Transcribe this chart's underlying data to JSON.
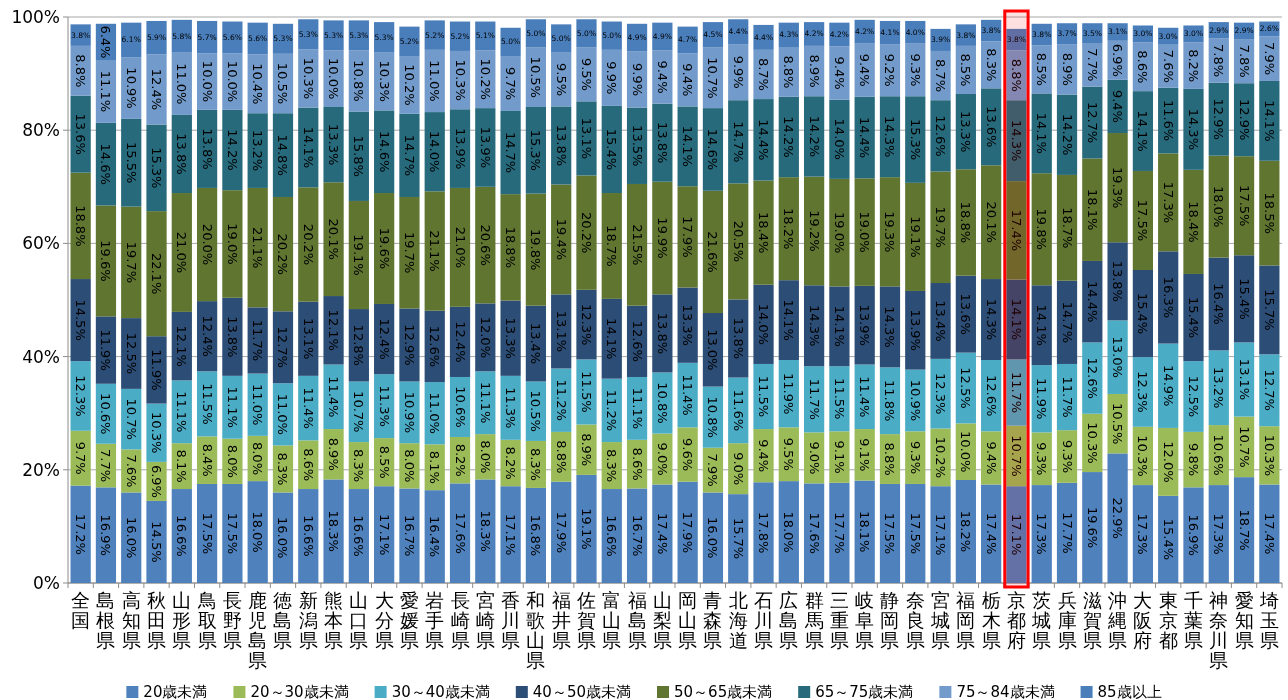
{
  "chart_data": {
    "type": "bar",
    "stacked": true,
    "data_labels": false,
    "grid": "y",
    "legend": "bottom",
    "categories": [
      "全国",
      "島根県",
      "高知県",
      "秋田県",
      "山形県",
      "鳥取県",
      "長野県",
      "鹿児島県",
      "徳島県",
      "新潟県",
      "熊本県",
      "山口県",
      "大分県",
      "愛媛県",
      "岩手県",
      "長崎県",
      "宮崎県",
      "香川県",
      "和歌山県",
      "福井県",
      "佐賀県",
      "富山県",
      "福島県",
      "山梨県",
      "岡山県",
      "青森県",
      "北海道",
      "石川県",
      "広島県",
      "群馬県",
      "三重県",
      "岐阜県",
      "静岡県",
      "奈良県",
      "宮城県",
      "福岡県",
      "栃木県",
      "京都府",
      "茨城県",
      "兵庫県",
      "滋賀県",
      "沖縄県",
      "大阪府",
      "東京都",
      "千葉県",
      "神奈川県",
      "愛知県",
      "埼玉県"
    ],
    "ylim": [
      0,
      100
    ],
    "yticks": [
      {
        "value": 0,
        "label": "0%"
      },
      {
        "value": 20,
        "label": "20%"
      },
      {
        "value": 40,
        "label": "40%"
      },
      {
        "value": 60,
        "label": "60%"
      },
      {
        "value": 80,
        "label": "80%"
      },
      {
        "value": 100,
        "label": "100%"
      }
    ],
    "bands": [
      {
        "axis": "x",
        "from": "京都府",
        "to": "京都府",
        "color": "#ff0000"
      }
    ],
    "series": [
      {
        "name": "20歳未満",
        "color": "#4f81bd",
        "values": [
          17.2,
          16.9,
          16.0,
          14.5,
          16.6,
          17.5,
          17.5,
          18.0,
          16.0,
          16.6,
          18.3,
          16.6,
          17.1,
          16.7,
          16.4,
          17.6,
          18.3,
          17.1,
          16.8,
          17.9,
          19.1,
          16.6,
          16.7,
          17.4,
          17.9,
          16.0,
          15.7,
          17.8,
          18.0,
          17.6,
          17.7,
          18.1,
          17.5,
          17.5,
          17.1,
          18.2,
          17.4,
          17.1,
          17.3,
          17.7,
          19.6,
          22.9,
          17.3,
          15.4,
          16.9,
          17.3,
          18.7,
          17.4
        ],
        "value_labels": [
          "17.2%",
          "16.9%",
          "16.0%",
          "14.5%",
          "16.6%",
          "17.5%",
          "17.5%",
          "18.0%",
          "16.0%",
          "16.6%",
          "18.3%",
          "16.6%",
          "17.1%",
          "16.7%",
          "16.4%",
          "17.6%",
          "18.3%",
          "17.1%",
          "16.8%",
          "17.9%",
          "19.1%",
          "16.6%",
          "16.7%",
          "17.4%",
          "17.9%",
          "16.0%",
          "15.7%",
          "17.8%",
          "18.0%",
          "17.6%",
          "17.7%",
          "18.1%",
          "17.5%",
          "17.5%",
          "17.1%",
          "18.2%",
          "17.4%",
          "17.1%",
          "17.3%",
          "17.7%",
          "19.6%",
          "22.9%",
          "17.3%",
          "15.4%",
          "16.9%",
          "17.3%",
          "18.7%",
          "17.4%"
        ]
      },
      {
        "name": "20～30歳未満",
        "color": "#9bbb59",
        "values": [
          9.7,
          7.7,
          7.6,
          6.9,
          8.1,
          8.4,
          8.0,
          8.0,
          8.3,
          8.6,
          8.9,
          8.3,
          8.5,
          8.0,
          8.1,
          8.2,
          8.0,
          8.2,
          8.3,
          8.8,
          8.9,
          8.3,
          8.6,
          9.0,
          9.6,
          7.9,
          9.0,
          9.4,
          9.5,
          9.0,
          9.1,
          9.1,
          8.8,
          9.3,
          10.2,
          10.0,
          9.4,
          10.7,
          9.3,
          9.3,
          10.3,
          10.5,
          10.3,
          12.0,
          9.8,
          10.6,
          10.7,
          10.3
        ],
        "value_labels": [
          "9.7%",
          "7.7%",
          "7.6%",
          "6.9%",
          "8.1%",
          "8.4%",
          "8.0%",
          "8.0%",
          "8.3%",
          "8.6%",
          "8.9%",
          "8.3%",
          "8.5%",
          "8.0%",
          "8.1%",
          "8.2%",
          "8.0%",
          "8.2%",
          "8.3%",
          "8.8%",
          "8.9%",
          "8.3%",
          "8.6%",
          "9.0%",
          "9.6%",
          "7.9%",
          "9.0%",
          "9.4%",
          "9.5%",
          "9.0%",
          "9.1%",
          "9.1%",
          "8.8%",
          "9.3%",
          "10.2%",
          "10.0%",
          "9.4%",
          "10.7%",
          "9.3%",
          "9.3%",
          "10.3%",
          "10.5%",
          "10.3%",
          "12.0%",
          "9.8%",
          "10.6%",
          "10.7%",
          "10.3%"
        ]
      },
      {
        "name": "30～40歳未満",
        "color": "#4bacc6",
        "values": [
          12.3,
          10.6,
          10.7,
          10.3,
          11.1,
          11.5,
          11.1,
          11.0,
          11.0,
          11.4,
          11.4,
          10.7,
          11.3,
          10.9,
          11.0,
          10.6,
          11.1,
          11.3,
          10.5,
          11.2,
          11.5,
          11.2,
          11.1,
          10.8,
          11.4,
          10.8,
          11.6,
          11.5,
          11.9,
          11.7,
          11.5,
          11.4,
          11.8,
          10.9,
          12.3,
          12.5,
          12.6,
          11.7,
          11.9,
          11.7,
          12.6,
          13.0,
          12.3,
          14.9,
          12.5,
          13.2,
          13.1,
          12.7
        ],
        "value_labels": [
          "12.3%",
          "10.6%",
          "10.7%",
          "10.3%",
          "11.1%",
          "11.5%",
          "11.1%",
          "11.0%",
          "11.0%",
          "11.4%",
          "11.4%",
          "10.7%",
          "11.3%",
          "10.9%",
          "11.0%",
          "10.6%",
          "11.1%",
          "11.3%",
          "10.5%",
          "11.2%",
          "11.5%",
          "11.2%",
          "11.1%",
          "10.8%",
          "11.4%",
          "10.8%",
          "11.6%",
          "11.5%",
          "11.9%",
          "11.7%",
          "11.5%",
          "11.4%",
          "11.8%",
          "10.9%",
          "12.3%",
          "12.5%",
          "12.6%",
          "11.7%",
          "11.9%",
          "11.7%",
          "12.6%",
          "13.0%",
          "12.3%",
          "14.9%",
          "12.5%",
          "13.2%",
          "13.1%",
          "12.7%"
        ]
      },
      {
        "name": "40～50歳未満",
        "color": "#2c4d75",
        "values": [
          14.5,
          11.9,
          12.5,
          11.9,
          12.1,
          12.4,
          13.8,
          11.7,
          12.7,
          13.1,
          12.1,
          12.8,
          12.4,
          12.9,
          12.6,
          12.4,
          12.0,
          13.3,
          13.4,
          13.1,
          12.3,
          14.1,
          12.6,
          13.8,
          13.3,
          13.0,
          13.8,
          14.0,
          14.1,
          14.3,
          14.1,
          13.9,
          14.3,
          13.9,
          13.4,
          13.6,
          14.3,
          14.1,
          14.1,
          14.7,
          14.4,
          13.8,
          15.4,
          16.3,
          15.4,
          16.4,
          15.4,
          15.7
        ],
        "value_labels": [
          "14.5%",
          "11.9%",
          "12.5%",
          "11.9%",
          "12.1%",
          "12.4%",
          "13.8%",
          "11.7%",
          "12.7%",
          "13.1%",
          "12.1%",
          "12.8%",
          "12.4%",
          "12.9%",
          "12.6%",
          "12.4%",
          "12.0%",
          "13.3%",
          "13.4%",
          "13.1%",
          "12.3%",
          "14.1%",
          "12.6%",
          "13.8%",
          "13.3%",
          "13.0%",
          "13.8%",
          "14.0%",
          "14.1%",
          "14.3%",
          "14.1%",
          "13.9%",
          "14.3%",
          "13.9%",
          "13.4%",
          "13.6%",
          "14.3%",
          "14.1%",
          "14.1%",
          "14.7%",
          "14.4%",
          "13.8%",
          "15.4%",
          "16.3%",
          "15.4%",
          "16.4%",
          "15.4%",
          "15.7%"
        ]
      },
      {
        "name": "50～65歳未満",
        "color": "#5f7530",
        "values": [
          18.8,
          19.6,
          19.7,
          22.1,
          21.0,
          20.0,
          19.0,
          21.1,
          20.2,
          20.2,
          20.1,
          19.1,
          19.6,
          19.7,
          21.1,
          21.0,
          20.6,
          18.8,
          19.8,
          19.4,
          20.2,
          18.7,
          21.5,
          19.9,
          17.9,
          21.6,
          20.5,
          18.4,
          18.2,
          19.2,
          19.0,
          19.0,
          19.3,
          19.1,
          19.7,
          18.8,
          20.1,
          17.4,
          19.8,
          18.7,
          18.1,
          19.3,
          17.5,
          17.3,
          18.4,
          18.0,
          17.5,
          18.5
        ],
        "value_labels": [
          "18.8%",
          "19.6%",
          "19.7%",
          "22.1%",
          "21.0%",
          "20.0%",
          "19.0%",
          "21.1%",
          "20.2%",
          "20.2%",
          "20.1%",
          "19.1%",
          "19.6%",
          "19.7%",
          "21.1%",
          "21.0%",
          "20.6%",
          "18.8%",
          "19.8%",
          "19.4%",
          "20.2%",
          "18.7%",
          "21.5%",
          "19.9%",
          "17.9%",
          "21.6%",
          "20.5%",
          "18.4%",
          "18.2%",
          "19.2%",
          "19.0%",
          "19.0%",
          "19.3%",
          "19.1%",
          "19.7%",
          "18.8%",
          "20.1%",
          "17.4%",
          "19.8%",
          "18.7%",
          "18.1%",
          "19.3%",
          "17.5%",
          "17.3%",
          "18.4%",
          "18.0%",
          "17.5%",
          "18.5%"
        ]
      },
      {
        "name": "65～75歳未満",
        "color": "#276a7c",
        "values": [
          13.6,
          14.6,
          15.5,
          15.3,
          13.8,
          13.8,
          14.2,
          13.2,
          14.8,
          14.1,
          13.3,
          15.8,
          14.6,
          14.7,
          14.0,
          13.9,
          13.9,
          14.7,
          15.3,
          13.8,
          13.1,
          15.4,
          13.5,
          13.8,
          14.1,
          14.6,
          14.7,
          14.4,
          14.2,
          14.2,
          14.0,
          14.4,
          14.3,
          15.3,
          12.6,
          13.3,
          13.6,
          14.3,
          14.1,
          14.2,
          12.7,
          9.4,
          14.1,
          11.6,
          14.3,
          12.9,
          12.9,
          14.1
        ],
        "value_labels": [
          "13.6%",
          "14.6%",
          "15.5%",
          "15.3%",
          "13.8%",
          "13.8%",
          "14.2%",
          "13.2%",
          "14.8%",
          "14.1%",
          "13.3%",
          "15.8%",
          "14.6%",
          "14.7%",
          "14.0%",
          "13.9%",
          "13.9%",
          "14.7%",
          "15.3%",
          "13.8%",
          "13.1%",
          "15.4%",
          "13.5%",
          "13.8%",
          "14.1%",
          "14.6%",
          "14.7%",
          "14.4%",
          "14.2%",
          "14.2%",
          "14.0%",
          "14.4%",
          "14.3%",
          "15.3%",
          "12.6%",
          "13.3%",
          "13.6%",
          "14.3%",
          "14.1%",
          "14.2%",
          "12.7%",
          "9.4%",
          "14.1%",
          "11.6%",
          "14.3%",
          "12.9%",
          "12.9%",
          "14.1%"
        ]
      },
      {
        "name": "75～84歳未満",
        "color": "#729aca",
        "values": [
          8.8,
          11.1,
          10.9,
          12.4,
          11.0,
          10.0,
          10.0,
          10.4,
          10.5,
          10.3,
          10.0,
          10.8,
          10.3,
          10.2,
          11.0,
          10.3,
          10.2,
          9.7,
          10.5,
          9.5,
          9.5,
          9.9,
          9.9,
          9.4,
          9.4,
          10.7,
          9.9,
          8.7,
          8.8,
          8.9,
          9.4,
          9.4,
          9.2,
          9.3,
          8.7,
          8.5,
          8.3,
          8.8,
          8.5,
          8.9,
          7.7,
          6.9,
          8.6,
          7.6,
          8.2,
          7.8,
          7.8,
          7.9
        ],
        "value_labels": [
          "8.8%",
          "11.1%",
          "10.9%",
          "12.4%",
          "11.0%",
          "10.0%",
          "10.0%",
          "10.4%",
          "10.5%",
          "10.3%",
          "10.0%",
          "10.8%",
          "10.3%",
          "10.2%",
          "11.0%",
          "10.3%",
          "10.2%",
          "9.7%",
          "10.5%",
          "9.5%",
          "9.5%",
          "9.9%",
          "9.9%",
          "9.4%",
          "9.4%",
          "10.7%",
          "9.9%",
          "8.7%",
          "8.8%",
          "8.9%",
          "9.4%",
          "9.4%",
          "9.2%",
          "9.3%",
          "8.7%",
          "8.5%",
          "8.3%",
          "8.8%",
          "8.5%",
          "8.9%",
          "7.7%",
          "6.9%",
          "8.6%",
          "7.6%",
          "8.2%",
          "7.8%",
          "7.8%",
          "7.9%"
        ]
      },
      {
        "name": "85歳以上",
        "color": "#4a7ebb",
        "values": [
          3.8,
          6.4,
          6.1,
          5.9,
          5.8,
          5.7,
          5.6,
          5.6,
          5.3,
          5.3,
          5.3,
          5.3,
          5.3,
          5.2,
          5.2,
          5.2,
          5.1,
          5.0,
          5.0,
          5.0,
          5.0,
          5.0,
          4.9,
          4.9,
          4.7,
          4.5,
          4.4,
          4.4,
          4.3,
          4.2,
          4.2,
          4.2,
          4.1,
          4.0,
          3.9,
          3.8,
          3.8,
          3.8,
          3.8,
          3.7,
          3.5,
          3.1,
          3.0,
          3.0,
          3.0,
          2.9,
          2.9,
          2.6
        ],
        "value_labels": [
          "3.8%",
          "6.4%",
          "6.1%",
          "5.9%",
          "5.8%",
          "5.7%",
          "5.6%",
          "5.6%",
          "5.3%",
          "5.3%",
          "5.3%",
          "5.3%",
          "5.3%",
          "5.2%",
          "5.2%",
          "5.2%",
          "5.1%",
          "5.0%",
          "5.0%",
          "5.0%",
          "5.0%",
          "5.0%",
          "4.9%",
          "4.9%",
          "4.7%",
          "4.5%",
          "4.4%",
          "4.4%",
          "4.3%",
          "4.2%",
          "4.2%",
          "4.2%",
          "4.1%",
          "4.0%",
          "3.9%",
          "3.8%",
          "3.8%",
          "3.8%",
          "3.8%",
          "3.7%",
          "3.5%",
          "3.1%",
          "3.0%",
          "3.0%",
          "3.0%",
          "2.9%",
          "2.9%",
          "2.6%"
        ]
      }
    ]
  }
}
